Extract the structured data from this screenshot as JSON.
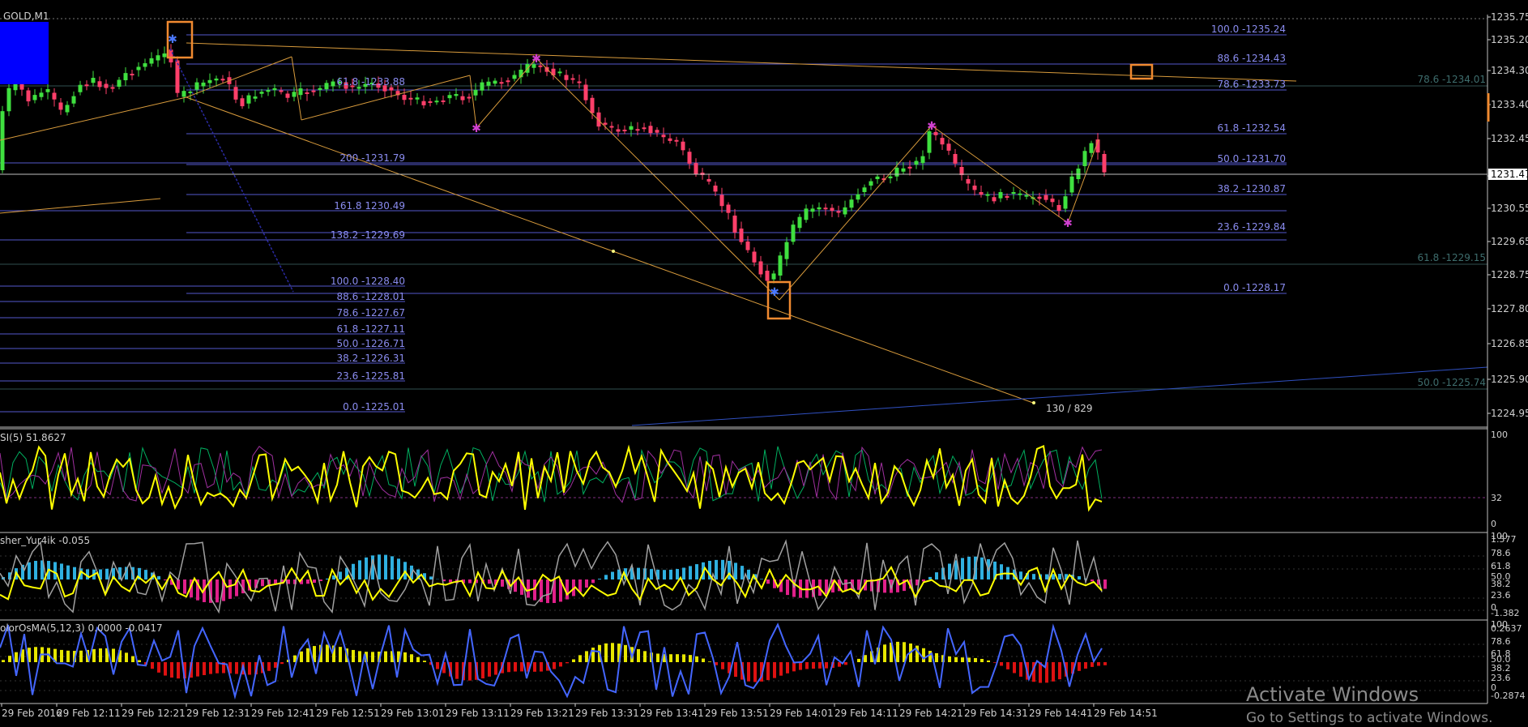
{
  "symbol": "GOLD,M1",
  "colors": {
    "background": "#000000",
    "grid": "#2b2b2b",
    "separator": "#c0c0c0",
    "bull": "#3fe03f",
    "bear": "#ff3f6a",
    "fib": "#5558cc",
    "fib_text": "#8a8cf0",
    "trend": "#d89b3c",
    "highlight": "#f08a30",
    "axis_text": "#d0d0d0",
    "rsi_line": "#ffff00",
    "histo_up": "#2fb0e0",
    "histo_down": "#e0208a",
    "osma_up": "#e6e600",
    "osma_down": "#dd1111",
    "wpr_line": "#4466ff",
    "gray_line": "#a0a0a0"
  },
  "price_axis": [
    "1235.75",
    "1235.20",
    "1234.30",
    "1233.40",
    "1232.45",
    "1231.47",
    "1230.55",
    "1229.65",
    "1228.75",
    "1227.80",
    "1226.85",
    "1225.90",
    "1224.95"
  ],
  "current_price": "1231.47",
  "fib_right": [
    "100.0 -1235.24",
    "88.6 -1234.43",
    "78.6 -1233.73",
    "61.8 -1232.54",
    "50.0 -1231.70",
    "38.2 -1230.87",
    "23.6 -1229.84",
    "0.0 -1228.17"
  ],
  "fib_mid": [
    "61.8 -1233.88",
    "200 -1231.79",
    "161.8 1230.49",
    "138.2 -1229.69",
    "100.0 -1228.40",
    "88.6 -1228.01",
    "78.6 -1227.67",
    "61.8 -1227.11",
    "50.0 -1226.71",
    "38.2 -1226.31",
    "23.6 -1225.81",
    "0.0 -1225.01"
  ],
  "fib_far": [
    "78.6 -1234.01",
    "61.8 -1229.15",
    "50.0 -1225.74"
  ],
  "pattern_label": "130 / 829",
  "rsi": {
    "label": "SI(5) 51.8627",
    "levels": [
      "100",
      "32",
      "0"
    ]
  },
  "fisher": {
    "label": "sher_Yur4ik -0.055",
    "levels": [
      "100",
      "1.577",
      "78.6",
      "61.8",
      "50.0",
      "38.2",
      "23.6",
      "0",
      "-1.382"
    ]
  },
  "osma": {
    "label": "olorOsMA(5,12,3) 0.0000 -0.0417",
    "levels": [
      "100",
      "0.2637",
      "78.6",
      "61.8",
      "50.0",
      "38.2",
      "23.6",
      "0",
      "-0.2874"
    ]
  },
  "time_axis": [
    "29 Feb 2016",
    "29 Feb 12:11",
    "29 Feb 12:21",
    "29 Feb 12:31",
    "29 Feb 12:41",
    "29 Feb 12:51",
    "29 Feb 13:01",
    "29 Feb 13:11",
    "29 Feb 13:21",
    "29 Feb 13:31",
    "29 Feb 13:41",
    "29 Feb 13:51",
    "29 Feb 14:01",
    "29 Feb 14:11",
    "29 Feb 14:21",
    "29 Feb 14:31",
    "29 Feb 14:41",
    "29 Feb 14:51"
  ],
  "activate_windows": {
    "title": "Activate Windows",
    "subtitle": "Go to Settings to activate Windows."
  }
}
